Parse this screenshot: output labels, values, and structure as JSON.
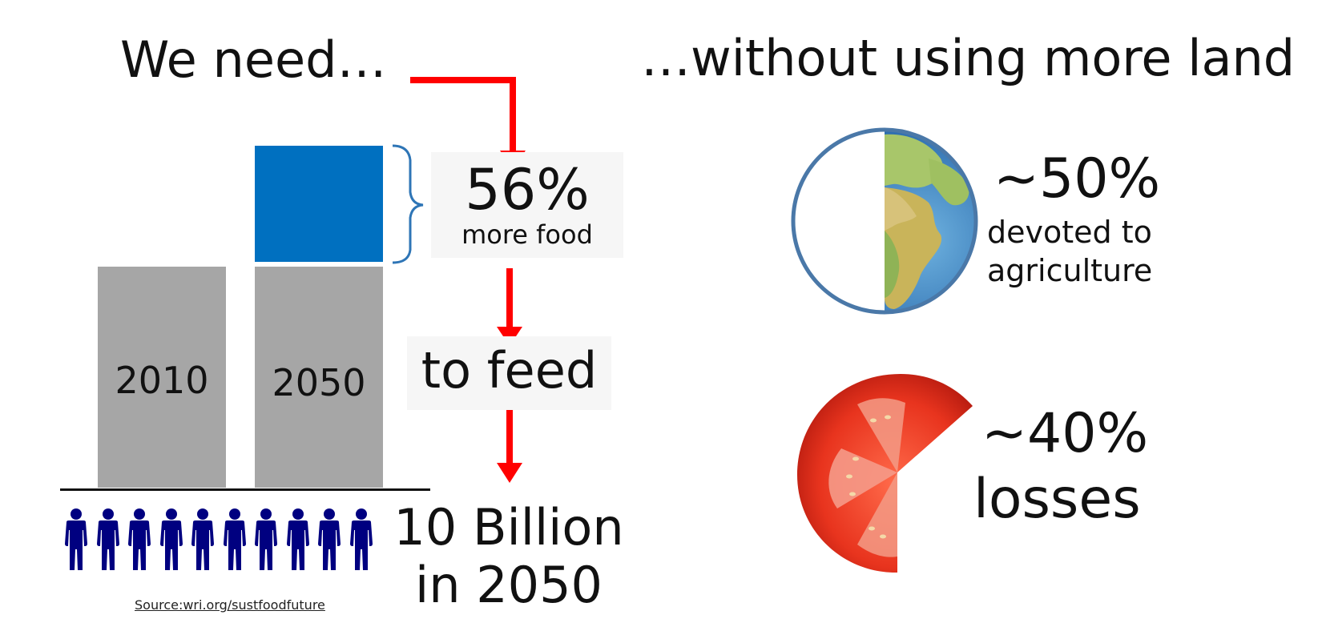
{
  "titles": {
    "left": "We need…",
    "right": "…without using more land"
  },
  "chart": {
    "bars": [
      {
        "label": "2010"
      },
      {
        "label": "2050"
      }
    ],
    "increase_value": "56%",
    "increase_caption": "more food"
  },
  "flow": {
    "to_feed": "to feed",
    "population_line1": "10 Billion",
    "population_line2": "in 2050",
    "people_count": 10
  },
  "right_panel": {
    "land_value": "~50%",
    "land_caption_line1": "devoted to",
    "land_caption_line2": "agriculture",
    "loss_value": "~40%",
    "loss_caption": "losses"
  },
  "source": "Source:wri.org/sustfoodfuture",
  "colors": {
    "arrow": "#ff0000",
    "blue_bar": "#0070c0",
    "gray_bar": "#a6a6a6",
    "people": "#000080",
    "globe_outline": "#4a78a8"
  }
}
